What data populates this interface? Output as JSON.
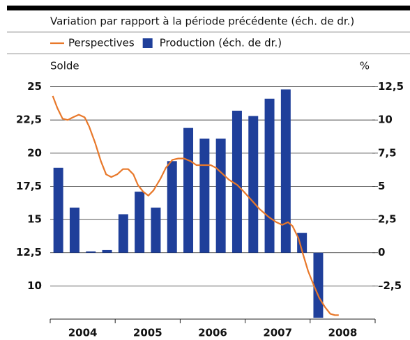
{
  "chart_data": {
    "type": "bar",
    "title": "Variation par rapport à la période précédente (éch. de dr.)",
    "ylabel": "Solde",
    "y2label": "%",
    "grid": true,
    "xlim": [
      2004,
      2009
    ],
    "xticks": [
      2004,
      2005,
      2006,
      2007,
      2008,
      2009
    ],
    "categories": [
      "2004",
      "2005",
      "2006",
      "2007",
      "2008"
    ],
    "ylim": [
      7.5,
      26.5
    ],
    "yticks": [
      {
        "value": 10,
        "label": "10"
      },
      {
        "value": 12.5,
        "label": "12,5"
      },
      {
        "value": 15,
        "label": "15"
      },
      {
        "value": 17.5,
        "label": "17,5"
      },
      {
        "value": 20,
        "label": "20"
      },
      {
        "value": 22.5,
        "label": "22,5"
      },
      {
        "value": 25,
        "label": "25"
      }
    ],
    "y2lim": [
      -5,
      14
    ],
    "y2ticks": [
      {
        "value": -2.5,
        "label": "–2,5"
      },
      0,
      {
        "value": 2.5,
        "label": "2,5"
      },
      5,
      {
        "value": 7.5,
        "label": "7,5"
      },
      10,
      {
        "value": 12.5,
        "label": "12,5"
      }
    ],
    "series": [
      {
        "name": "Perspectives",
        "type": "line",
        "color": "#e8782a",
        "x": [
          2004.04,
          2004.11,
          2004.19,
          2004.27,
          2004.35,
          2004.44,
          2004.53,
          2004.6,
          2004.69,
          2004.78,
          2004.86,
          2004.94,
          2005.03,
          2005.12,
          2005.2,
          2005.28,
          2005.35,
          2005.43,
          2005.51,
          2005.59,
          2005.7,
          2005.78,
          2005.88,
          2005.97,
          2006.06,
          2006.16,
          2006.25,
          2006.36,
          2006.47,
          2006.55,
          2006.64,
          2006.75,
          2006.88,
          2006.98,
          2007.09,
          2007.22,
          2007.36,
          2007.48,
          2007.57,
          2007.66,
          2007.73,
          2007.82,
          2007.89,
          2007.97,
          2008.06,
          2008.14,
          2008.23,
          2008.31,
          2008.38,
          2008.44
        ],
        "values": [
          24.3,
          23.4,
          22.6,
          22.5,
          22.7,
          22.9,
          22.7,
          22.0,
          20.8,
          19.4,
          18.4,
          18.2,
          18.4,
          18.8,
          18.8,
          18.4,
          17.6,
          17.1,
          16.8,
          17.2,
          18.1,
          18.9,
          19.5,
          19.6,
          19.6,
          19.4,
          19.1,
          19.1,
          19.1,
          18.9,
          18.5,
          18.0,
          17.6,
          17.1,
          16.5,
          15.8,
          15.2,
          14.8,
          14.6,
          14.8,
          14.5,
          13.6,
          12.4,
          11.1,
          10.0,
          9.1,
          8.4,
          7.9,
          7.8,
          7.8
        ]
      },
      {
        "name": "Production (éch. de dr.)",
        "type": "bar",
        "axis": "y2",
        "color": "#1f3f9a",
        "x": [
          2004,
          2004.25,
          2004.5,
          2004.75,
          2005,
          2005.25,
          2005.5,
          2005.75,
          2006,
          2006.25,
          2006.5,
          2006.75,
          2007,
          2007.25,
          2007.5,
          2007.75,
          2008
        ],
        "values": [
          6.4,
          3.4,
          0.1,
          0.2,
          2.9,
          4.6,
          3.4,
          6.9,
          9.4,
          8.6,
          8.6,
          10.7,
          10.3,
          11.6,
          12.3,
          1.5,
          -4.9
        ]
      }
    ]
  }
}
